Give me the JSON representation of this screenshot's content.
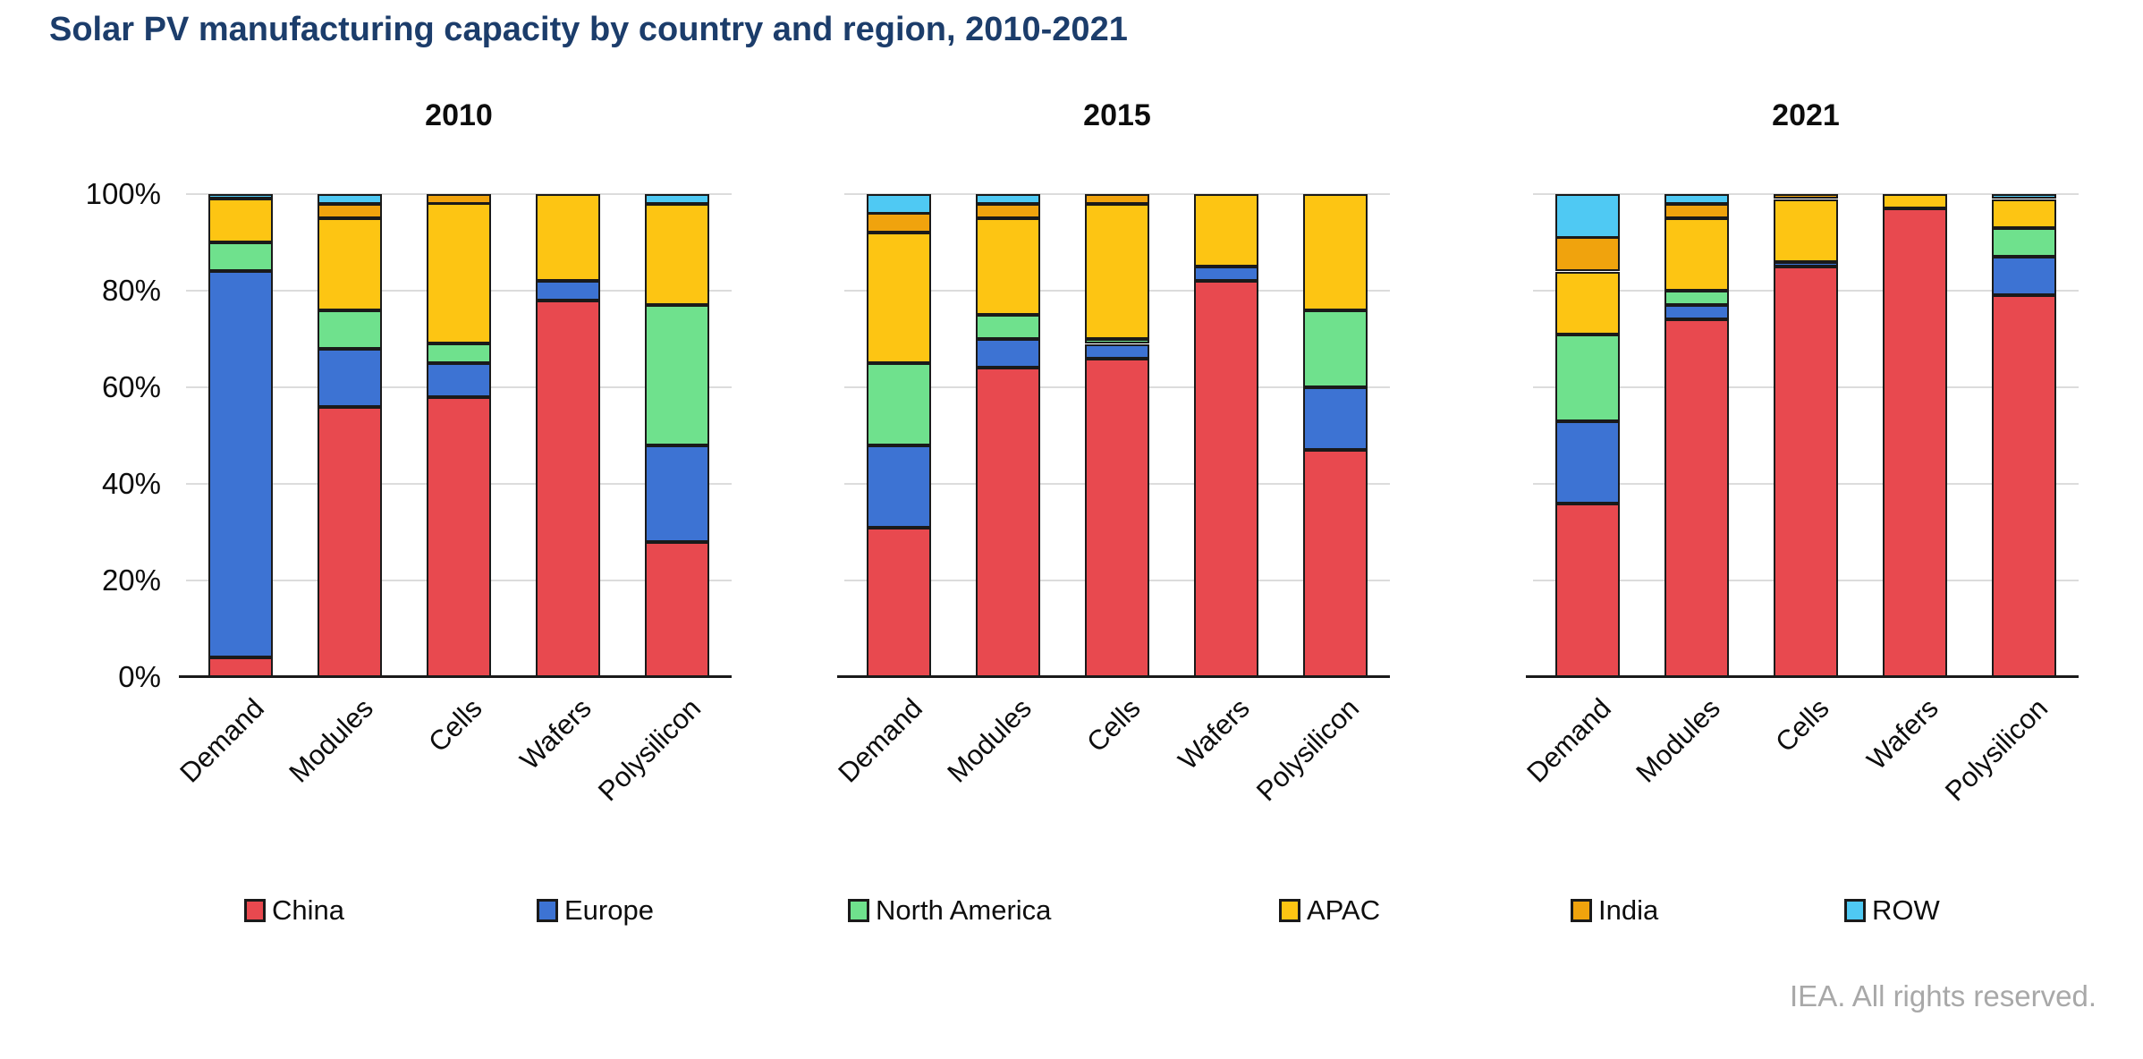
{
  "page": {
    "title": "Solar PV manufacturing capacity by country and region, 2010-2021",
    "footer": "IEA. All rights reserved."
  },
  "axis": {
    "y_ticks": [
      "100%",
      "80%",
      "60%",
      "40%",
      "20%",
      "0%"
    ],
    "ylim": [
      0,
      100
    ],
    "grid": true
  },
  "legend": {
    "position": "bottom",
    "items": [
      {
        "label": "China",
        "color": "#E8494F"
      },
      {
        "label": "Europe",
        "color": "#3D73D3"
      },
      {
        "label": "North America",
        "color": "#6FE18D"
      },
      {
        "label": "APAC",
        "color": "#FDC513"
      },
      {
        "label": "India",
        "color": "#F0A30D"
      },
      {
        "label": "ROW",
        "color": "#4FC9F3"
      }
    ]
  },
  "chart_data": [
    {
      "type": "bar",
      "stacked": true,
      "title": "2010",
      "categories": [
        "Demand",
        "Modules",
        "Cells",
        "Wafers",
        "Polysilicon"
      ],
      "units": "%",
      "ylim": [
        0,
        100
      ],
      "series": [
        {
          "name": "China",
          "color": "#E8494F",
          "values": [
            4,
            56,
            58,
            78,
            28
          ]
        },
        {
          "name": "Europe",
          "color": "#3D73D3",
          "values": [
            80,
            12,
            7,
            4,
            20
          ]
        },
        {
          "name": "North America",
          "color": "#6FE18D",
          "values": [
            6,
            8,
            4,
            0,
            29
          ]
        },
        {
          "name": "APAC",
          "color": "#FDC513",
          "values": [
            9,
            19,
            29,
            18,
            21
          ]
        },
        {
          "name": "India",
          "color": "#F0A30D",
          "values": [
            0,
            3,
            2,
            0,
            0
          ]
        },
        {
          "name": "ROW",
          "color": "#4FC9F3",
          "values": [
            1,
            2,
            0,
            0,
            2
          ]
        }
      ]
    },
    {
      "type": "bar",
      "stacked": true,
      "title": "2015",
      "categories": [
        "Demand",
        "Modules",
        "Cells",
        "Wafers",
        "Polysilicon"
      ],
      "units": "%",
      "ylim": [
        0,
        100
      ],
      "series": [
        {
          "name": "China",
          "color": "#E8494F",
          "values": [
            31,
            64,
            66,
            82,
            47
          ]
        },
        {
          "name": "Europe",
          "color": "#3D73D3",
          "values": [
            17,
            6,
            3,
            3,
            13
          ]
        },
        {
          "name": "North America",
          "color": "#6FE18D",
          "values": [
            17,
            5,
            1,
            0,
            16
          ]
        },
        {
          "name": "APAC",
          "color": "#FDC513",
          "values": [
            27,
            20,
            28,
            15,
            24
          ]
        },
        {
          "name": "India",
          "color": "#F0A30D",
          "values": [
            4,
            3,
            2,
            0,
            0
          ]
        },
        {
          "name": "ROW",
          "color": "#4FC9F3",
          "values": [
            4,
            2,
            0,
            0,
            0
          ]
        }
      ]
    },
    {
      "type": "bar",
      "stacked": true,
      "title": "2021",
      "categories": [
        "Demand",
        "Modules",
        "Cells",
        "Wafers",
        "Polysilicon"
      ],
      "units": "%",
      "ylim": [
        0,
        100
      ],
      "series": [
        {
          "name": "China",
          "color": "#E8494F",
          "values": [
            36,
            74,
            85,
            97,
            79
          ]
        },
        {
          "name": "Europe",
          "color": "#3D73D3",
          "values": [
            17,
            3,
            1,
            0,
            8
          ]
        },
        {
          "name": "North America",
          "color": "#6FE18D",
          "values": [
            18,
            3,
            0,
            0,
            6
          ]
        },
        {
          "name": "APAC",
          "color": "#FDC513",
          "values": [
            13,
            15,
            13,
            3,
            6
          ]
        },
        {
          "name": "India",
          "color": "#F0A30D",
          "values": [
            7,
            3,
            1,
            0,
            0
          ]
        },
        {
          "name": "ROW",
          "color": "#4FC9F3",
          "values": [
            9,
            2,
            0,
            0,
            1
          ]
        }
      ]
    }
  ]
}
